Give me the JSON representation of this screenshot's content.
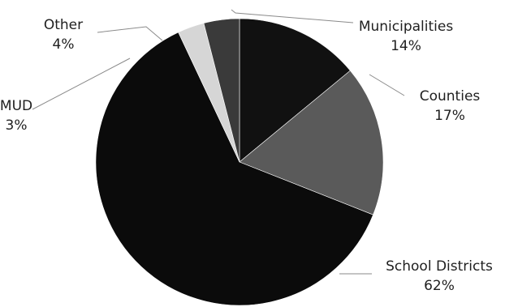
{
  "chart_data": {
    "type": "pie",
    "slices": [
      {
        "label": "Municipalities",
        "value": 14,
        "value_label": "14%",
        "color": "#111111"
      },
      {
        "label": "Counties",
        "value": 17,
        "value_label": "17%",
        "color": "#5a5a5a"
      },
      {
        "label": "School Districts",
        "value": 62,
        "value_label": "62%",
        "color": "#0b0b0b"
      },
      {
        "label": "MUD",
        "value": 3,
        "value_label": "3%",
        "color": "#d6d6d6"
      },
      {
        "label": "Other",
        "value": 4,
        "value_label": "4%",
        "color": "#3a3a3a"
      }
    ],
    "start_angle_deg": 0,
    "direction": "clockwise",
    "legend": "none"
  }
}
